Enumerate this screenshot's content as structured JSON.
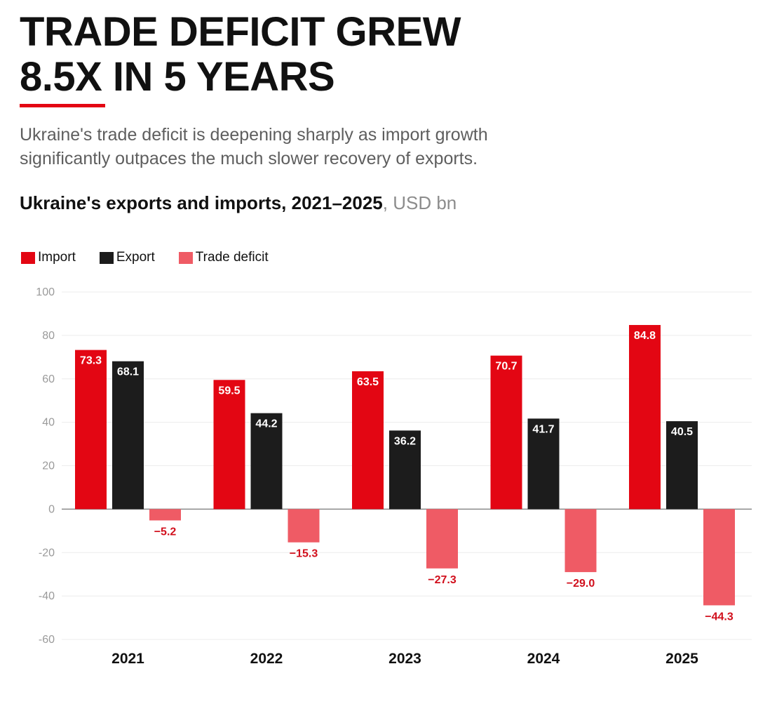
{
  "header": {
    "title_line1": "TRADE DEFICIT GREW",
    "title_line2": "8.5X IN 5 YEARS",
    "subtitle_line1": "Ukraine's trade deficit is deepening sharply as import growth",
    "subtitle_line2": "significantly outpaces the much slower recovery of exports.",
    "chart_title": "Ukraine's exports and imports, 2021–2025",
    "chart_unit": ", USD bn"
  },
  "colors": {
    "accent": "#e30613",
    "import": "#e30613",
    "export": "#1c1c1c",
    "deficit": "#ef5b65",
    "deficit_label": "#d10f1c"
  },
  "chart_data": {
    "type": "bar",
    "categories": [
      "2021",
      "2022",
      "2023",
      "2024",
      "2025"
    ],
    "series": [
      {
        "name": "Import",
        "values": [
          73.3,
          59.5,
          63.5,
          70.7,
          84.8
        ],
        "labels": [
          "73.3",
          "59.5",
          "63.5",
          "70.7",
          "84.8"
        ]
      },
      {
        "name": "Export",
        "values": [
          68.1,
          44.2,
          36.2,
          41.7,
          40.5
        ],
        "labels": [
          "68.1",
          "44.2",
          "36.2",
          "41.7",
          "40.5"
        ]
      },
      {
        "name": "Trade deficit",
        "values": [
          -5.2,
          -15.3,
          -27.3,
          -29.0,
          -44.3
        ],
        "labels": [
          "−5.2",
          "−15.3",
          "−27.3",
          "−29.0",
          "−44.3"
        ]
      }
    ],
    "yticks": [
      100,
      80,
      60,
      40,
      20,
      0,
      -20,
      -40,
      -60
    ],
    "ylim": [
      -60,
      100
    ],
    "grid": true,
    "legend_position": "top-left"
  }
}
